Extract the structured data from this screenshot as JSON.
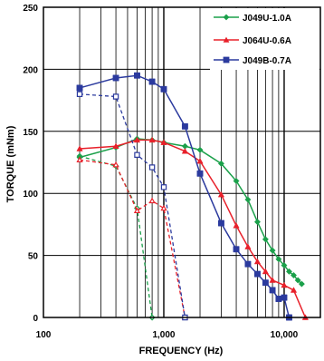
{
  "chart_data": {
    "type": "line",
    "xlabel": "FREQUENCY (Hz)",
    "ylabel": "TORQUE (mNm)",
    "x_scale": "log",
    "xlim": [
      100,
      20000
    ],
    "ylim": [
      0,
      250
    ],
    "x_ticks": [
      {
        "value": 100,
        "label": "100"
      },
      {
        "value": 1000,
        "label": "1,000"
      },
      {
        "value": 10000,
        "label": "10,000"
      }
    ],
    "y_ticks": [
      0,
      50,
      100,
      150,
      200,
      250
    ],
    "grid": true,
    "legend_position": "top-right",
    "series": [
      {
        "name": "J049U-1.0A",
        "color": "#1aa04a",
        "marker": "diamond",
        "solid": {
          "x": [
            200,
            400,
            600,
            800,
            1000,
            1500,
            2000,
            3000,
            4000,
            5000,
            6000,
            7000,
            8000,
            9000,
            10000,
            11000,
            12000,
            13000,
            14000
          ],
          "y": [
            129,
            137,
            144,
            143,
            141,
            138,
            135,
            124,
            110,
            95,
            77,
            63,
            54,
            47,
            42,
            37,
            34,
            30,
            27
          ]
        },
        "dashed": {
          "x": [
            200,
            400,
            600,
            800
          ],
          "y": [
            130,
            122,
            88,
            0
          ]
        }
      },
      {
        "name": "J064U-0.6A",
        "color": "#e8202a",
        "marker": "triangle",
        "solid": {
          "x": [
            200,
            400,
            600,
            800,
            1000,
            1500,
            2000,
            3000,
            4000,
            5000,
            6000,
            7000,
            8000,
            10000,
            12000,
            15000
          ],
          "y": [
            136,
            138,
            143,
            143,
            141,
            134,
            126,
            99,
            74,
            57,
            45,
            37,
            30,
            26,
            22,
            0
          ]
        },
        "dashed": {
          "x": [
            200,
            400,
            600,
            800,
            1000,
            1500
          ],
          "y": [
            127,
            123,
            86,
            94,
            88,
            0
          ]
        }
      },
      {
        "name": "J049B-0.7A",
        "color": "#2b3a9e",
        "marker": "square",
        "solid": {
          "x": [
            200,
            400,
            600,
            800,
            1000,
            1500,
            2000,
            3000,
            4000,
            5000,
            6000,
            7000,
            8000,
            9000,
            10000,
            11000
          ],
          "y": [
            185,
            193,
            195,
            190,
            184,
            154,
            116,
            76,
            55,
            43,
            35,
            28,
            22,
            15,
            16,
            0
          ]
        },
        "dashed": {
          "x": [
            200,
            400,
            600,
            800,
            1000,
            1500
          ],
          "y": [
            180,
            178,
            131,
            121,
            105,
            0
          ]
        }
      }
    ]
  }
}
